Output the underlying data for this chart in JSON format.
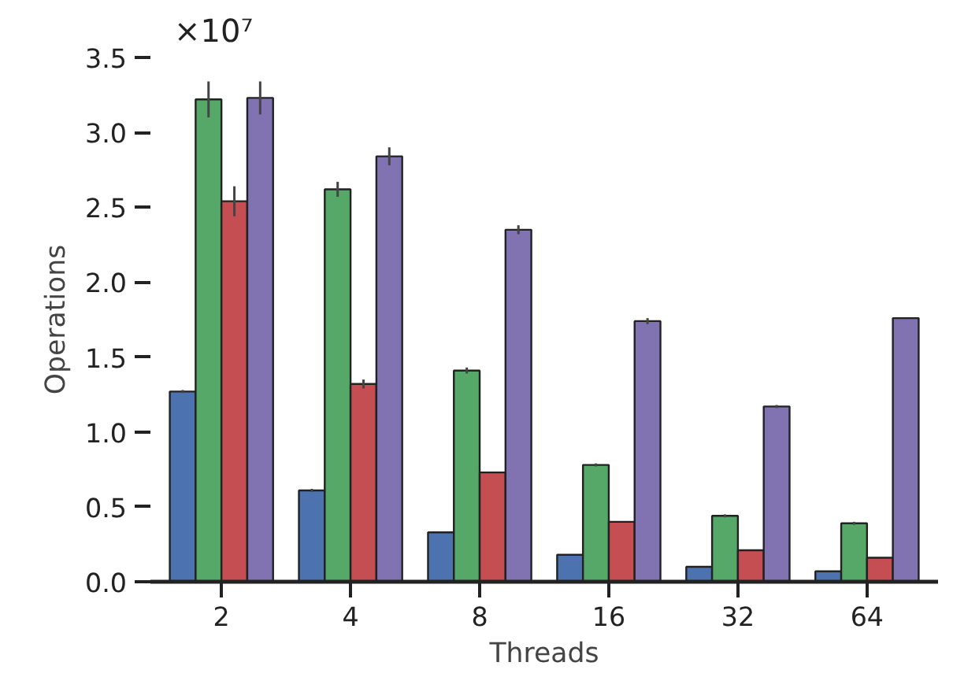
{
  "chart_data": {
    "type": "bar",
    "xlabel": "Threads",
    "ylabel": "Operations",
    "categories": [
      "2",
      "4",
      "8",
      "16",
      "32",
      "64"
    ],
    "series": [
      {
        "color": "#4c72b0",
        "values": [
          1.27,
          0.61,
          0.33,
          0.18,
          0.1,
          0.07
        ],
        "errors": [
          0.01,
          0.01,
          null,
          null,
          null,
          null
        ]
      },
      {
        "color": "#55a868",
        "values": [
          3.22,
          2.62,
          1.41,
          0.78,
          0.44,
          0.39
        ],
        "errors": [
          0.12,
          0.05,
          0.02,
          0.01,
          0.01,
          0.01
        ]
      },
      {
        "color": "#c44e52",
        "values": [
          2.54,
          1.32,
          0.73,
          0.4,
          0.21,
          0.16
        ],
        "errors": [
          0.1,
          0.03,
          null,
          null,
          null,
          null
        ]
      },
      {
        "color": "#8172b2",
        "values": [
          3.23,
          2.84,
          2.35,
          1.74,
          1.17,
          1.76
        ],
        "errors": [
          0.11,
          0.06,
          0.03,
          0.02,
          0.01,
          null
        ]
      }
    ],
    "ylim": [
      0,
      3.5
    ],
    "yticks": [
      {
        "value": 0,
        "label": "0.0"
      },
      {
        "value": 0.5,
        "label": "0.5"
      },
      {
        "value": 1,
        "label": "1.0"
      },
      {
        "value": 1.5,
        "label": "1.5"
      },
      {
        "value": 2,
        "label": "2.0"
      },
      {
        "value": 2.5,
        "label": "2.5"
      },
      {
        "value": 3,
        "label": "3.0"
      },
      {
        "value": 3.5,
        "label": "3.5"
      }
    ],
    "annotations": [
      "×10⁷"
    ],
    "grid": false
  }
}
